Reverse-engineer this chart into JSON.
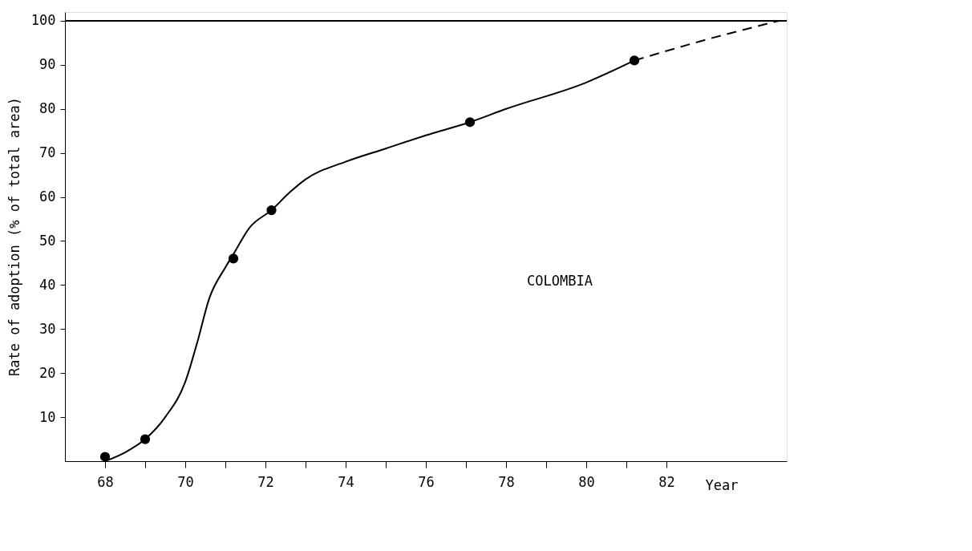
{
  "chart_data": {
    "type": "scatter",
    "ylabel": "Rate of adoption (% of total area)",
    "xlabel": "Year",
    "annotations": [
      "COLOMBIA"
    ],
    "series": [
      {
        "color": "#000000",
        "marker": "circle",
        "x": [
          68,
          69,
          71.2,
          72.15,
          77.1,
          81.2
        ],
        "values": [
          1,
          5,
          46,
          57,
          77,
          91
        ]
      },
      {
        "type": "line",
        "color": "#000000",
        "line_style": "solid",
        "x": [
          68.0,
          68.5,
          69,
          69.5,
          70,
          70.3,
          70.6,
          71,
          71.2,
          71.6,
          72.15,
          72.6,
          73,
          74,
          75,
          76,
          77.1,
          78,
          80,
          81.2
        ],
        "values": [
          0,
          2,
          5,
          10,
          18,
          27,
          37,
          44,
          47,
          53,
          57,
          61,
          64,
          68,
          71,
          74,
          77,
          80,
          86,
          91
        ]
      },
      {
        "type": "line",
        "color": "#000000",
        "line_style": "dashed",
        "x": [
          81.2,
          83.1,
          84.8
        ],
        "values": [
          91,
          96,
          100
        ]
      }
    ],
    "ref_lines": [
      {
        "axis": "y",
        "value": 100,
        "color": "#000000"
      }
    ],
    "xlim": [
      67,
      85
    ],
    "ylim": [
      0,
      102
    ],
    "xticks": [
      68,
      {
        "value": 69,
        "label": null
      },
      70,
      {
        "value": 71,
        "label": null
      },
      72,
      {
        "value": 73,
        "label": null
      },
      74,
      {
        "value": 75,
        "label": null
      },
      76,
      {
        "value": 77,
        "label": null
      },
      78,
      {
        "value": 79,
        "label": null
      },
      80,
      {
        "value": 81,
        "label": null
      },
      82
    ],
    "yticks": [
      10,
      20,
      30,
      40,
      50,
      60,
      70,
      80,
      90,
      100
    ],
    "grid": false
  }
}
